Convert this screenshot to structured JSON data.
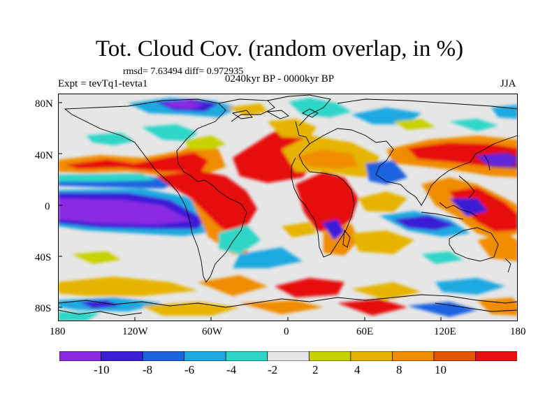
{
  "title": "Tot. Cloud Cov. (random overlap, in %)",
  "stats": "rmsd= 7.63494 diff= 0.972935",
  "expt": "Expt = tevTq1-tevta1",
  "period": "0240kyr BP - 0000kyr BP",
  "season": "JJA",
  "lat_labels": [
    "80N",
    "40N",
    "0",
    "40S",
    "80S"
  ],
  "lon_labels": [
    "180",
    "120W",
    "60W",
    "0",
    "60E",
    "120E",
    "180"
  ],
  "colorbar": {
    "colors": [
      "#8a2be2",
      "#3a1fd6",
      "#1c63e0",
      "#1ca9e0",
      "#2ed6c8",
      "#e6e6e6",
      "#c8d200",
      "#e6b400",
      "#f08c00",
      "#e65500",
      "#e61010"
    ],
    "labels": [
      "-10",
      "-8",
      "-6",
      "-4",
      "-2",
      "2",
      "4",
      "8",
      "10"
    ]
  }
}
